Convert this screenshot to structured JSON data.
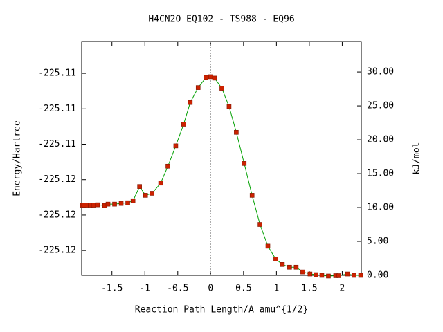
{
  "chart_data": {
    "type": "line",
    "title": "H4CN2O   EQ102 - TS988 - EQ96",
    "xlabel": "Reaction Path Length/A amu^{1/2}",
    "ylabel": "Energy/Hartree",
    "y2label": "kJ/mol",
    "xlim": [
      -1.96,
      2.29
    ],
    "xticks": [
      -1.5,
      -1,
      -0.5,
      0,
      0.5,
      1,
      1.5,
      2
    ],
    "ylim": [
      -225.1214,
      -225.1082
    ],
    "yticks": [
      {
        "value": -225.11,
        "label": "-225.11"
      },
      {
        "value": -225.112,
        "label": "-225.11"
      },
      {
        "value": -225.114,
        "label": "-225.11"
      },
      {
        "value": -225.116,
        "label": "-225.12"
      },
      {
        "value": -225.118,
        "label": "-225.12"
      },
      {
        "value": -225.12,
        "label": "-225.12"
      }
    ],
    "y2lim": [
      0,
      34.5
    ],
    "y2ticks": [
      {
        "value": 0,
        "label": "0.00"
      },
      {
        "value": 5,
        "label": "5.00"
      },
      {
        "value": 10,
        "label": "10.00"
      },
      {
        "value": 15,
        "label": "15.00"
      },
      {
        "value": 20,
        "label": "20.00"
      },
      {
        "value": 25,
        "label": "25.00"
      },
      {
        "value": 30,
        "label": "30.00"
      }
    ],
    "ts_line_x": 0,
    "series": [
      {
        "axis": "y2",
        "color": "#00a000",
        "marker_color": "#cc2200",
        "x": [
          -1.95,
          -1.93,
          -1.89,
          -1.83,
          -1.78,
          -1.72,
          -1.61,
          -1.56,
          -1.46,
          -1.36,
          -1.26,
          -1.18,
          -1.08,
          -0.99,
          -0.89,
          -0.76,
          -0.65,
          -0.53,
          -0.41,
          -0.31,
          -0.19,
          -0.07,
          0,
          0.06,
          0.17,
          0.28,
          0.39,
          0.51,
          0.63,
          0.75,
          0.87,
          0.99,
          1.09,
          1.2,
          1.3,
          1.4,
          1.51,
          1.6,
          1.69,
          1.79,
          1.9,
          1.95,
          2.08,
          2.18,
          2.28
        ],
        "values": [
          10.35,
          10.35,
          10.35,
          10.35,
          10.35,
          10.4,
          10.3,
          10.5,
          10.5,
          10.6,
          10.7,
          11.0,
          13.1,
          11.8,
          12.1,
          13.6,
          16.1,
          19.1,
          22.3,
          25.5,
          27.7,
          29.2,
          29.3,
          29.1,
          27.6,
          24.9,
          21.1,
          16.5,
          11.8,
          7.5,
          4.3,
          2.4,
          1.6,
          1.2,
          1.2,
          0.5,
          0.2,
          0.1,
          0,
          -0.1,
          -0.05,
          -0.05,
          0.2,
          0,
          0
        ]
      }
    ]
  }
}
